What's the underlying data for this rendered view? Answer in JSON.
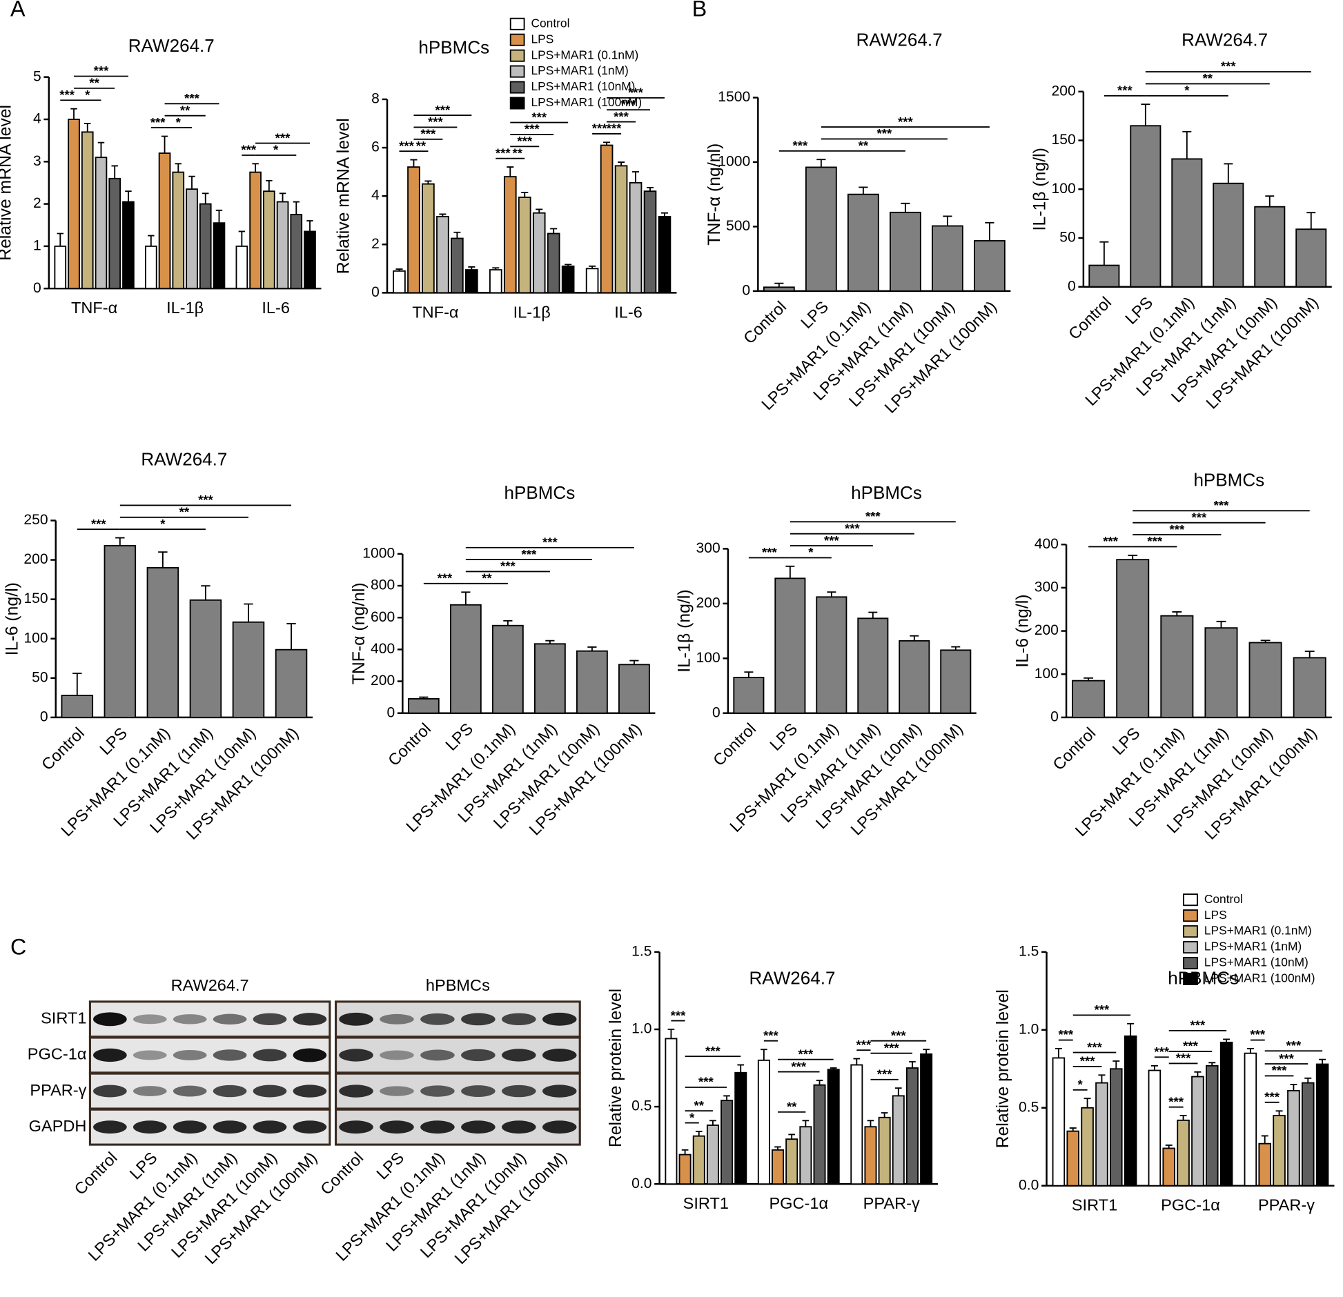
{
  "panels": [
    "A",
    "B",
    "C"
  ],
  "blot": {
    "proteins": [
      "SIRT1",
      "PGC-1α",
      "PPAR-γ",
      "GAPDH"
    ],
    "groups": [
      {
        "name": "RAW264.7",
        "lanes": [
          "Control",
          "LPS",
          "LPS+MAR1 (0.1nM)",
          "LPS+MAR1 (1nM)",
          "LPS+MAR1 (10nM)",
          "LPS+MAR1 (100nM)"
        ]
      },
      {
        "name": "hPBMCs",
        "lanes": [
          "Control",
          "LPS",
          "LPS+MAR1 (0.1nM)",
          "LPS+MAR1 (1nM)",
          "LPS+MAR1 (10nM)",
          "LPS+MAR1 (100nM)"
        ]
      }
    ]
  },
  "chart_data": [
    {
      "type": "bar",
      "title": "RAW264.7",
      "ylabel": "Relative mRNA level",
      "categories": [
        "TNF-α",
        "IL-1β",
        "IL-6"
      ],
      "ylim": [
        0,
        5
      ],
      "yticks": [
        0,
        1,
        2,
        3,
        4,
        5
      ],
      "series": [
        {
          "color": "#ffffff",
          "values": [
            1.0,
            1.0,
            1.0
          ],
          "errors": [
            0.3,
            0.25,
            0.35
          ]
        },
        {
          "color": "#d8914a",
          "values": [
            4.0,
            3.2,
            2.75
          ],
          "errors": [
            0.25,
            0.4,
            0.2
          ]
        },
        {
          "color": "#c4b37c",
          "values": [
            3.7,
            2.75,
            2.3
          ],
          "errors": [
            0.2,
            0.2,
            0.25
          ]
        },
        {
          "color": "#bdbdbd",
          "values": [
            3.1,
            2.35,
            2.05
          ],
          "errors": [
            0.35,
            0.3,
            0.2
          ]
        },
        {
          "color": "#5f5f5f",
          "values": [
            2.6,
            2.0,
            1.75
          ],
          "errors": [
            0.3,
            0.25,
            0.3
          ]
        },
        {
          "color": "#000000",
          "values": [
            2.05,
            1.55,
            1.35
          ],
          "errors": [
            0.25,
            0.3,
            0.25
          ]
        }
      ],
      "annotations": [
        [
          "***",
          "*",
          "**",
          "***"
        ],
        [
          "***",
          "*",
          "**",
          "***"
        ],
        [
          "***",
          "*",
          "***"
        ]
      ]
    },
    {
      "type": "bar",
      "title": "hPBMCs",
      "ylabel": "Relative mRNA level",
      "categories": [
        "TNF-α",
        "IL-1β",
        "IL-6"
      ],
      "ylim": [
        0,
        8
      ],
      "yticks": [
        0,
        2,
        4,
        6,
        8
      ],
      "series": [
        {
          "name": "Control",
          "color": "#ffffff",
          "values": [
            0.9,
            0.95,
            1.0
          ],
          "errors": [
            0.08,
            0.08,
            0.1
          ]
        },
        {
          "name": "LPS",
          "color": "#d8914a",
          "values": [
            5.2,
            4.8,
            6.1
          ],
          "errors": [
            0.3,
            0.4,
            0.12
          ]
        },
        {
          "name": "LPS+MAR1 (0.1nM)",
          "color": "#c4b37c",
          "values": [
            4.5,
            3.95,
            5.25
          ],
          "errors": [
            0.12,
            0.2,
            0.15
          ]
        },
        {
          "name": "LPS+MAR1 (1nM)",
          "color": "#bdbdbd",
          "values": [
            3.15,
            3.3,
            4.55
          ],
          "errors": [
            0.1,
            0.15,
            0.45
          ]
        },
        {
          "name": "LPS+MAR1 (10nM)",
          "color": "#5f5f5f",
          "values": [
            2.25,
            2.45,
            4.2
          ],
          "errors": [
            0.25,
            0.2,
            0.15
          ]
        },
        {
          "name": "LPS+MAR1 (100nM)",
          "color": "#000000",
          "values": [
            0.95,
            1.1,
            3.15
          ],
          "errors": [
            0.12,
            0.07,
            0.15
          ]
        }
      ],
      "annotations": [
        [
          "***",
          "**",
          "***",
          "***",
          "***"
        ],
        [
          "***",
          "**",
          "***",
          "***",
          "***"
        ],
        [
          "***",
          "***",
          "***",
          "***",
          "***"
        ]
      ]
    },
    {
      "type": "bar",
      "title": "RAW264.7",
      "ylabel": "TNF-α (ng/nl)",
      "categories": [
        "Control",
        "LPS",
        "LPS+MAR1 (0.1nM)",
        "LPS+MAR1 (1nM)",
        "LPS+MAR1 (10nM)",
        "LPS+MAR1 (100nM)"
      ],
      "values": [
        30,
        960,
        750,
        610,
        505,
        390
      ],
      "errors": [
        30,
        60,
        55,
        70,
        75,
        140
      ],
      "color": "#808080",
      "ylim": [
        0,
        1500
      ],
      "yticks": [
        0,
        500,
        1000,
        1500
      ],
      "annotations": [
        "***",
        "**",
        "***",
        "***"
      ]
    },
    {
      "type": "bar",
      "title": "RAW264.7",
      "ylabel": "IL-1β (ng/l)",
      "categories": [
        "Control",
        "LPS",
        "LPS+MAR1 (0.1nM)",
        "LPS+MAR1 (1nM)",
        "LPS+MAR1 (10nM)",
        "LPS+MAR1 (100nM)"
      ],
      "values": [
        22,
        165,
        131,
        106,
        82,
        59
      ],
      "errors": [
        24,
        22,
        28,
        20,
        11,
        17
      ],
      "color": "#808080",
      "ylim": [
        0,
        200
      ],
      "yticks": [
        0,
        50,
        100,
        150,
        200
      ],
      "annotations": [
        "***",
        "*",
        "**",
        "***"
      ]
    },
    {
      "type": "bar",
      "title": "RAW264.7",
      "ylabel": "IL-6 (ng/l)",
      "categories": [
        "Control",
        "LPS",
        "LPS+MAR1 (0.1nM)",
        "LPS+MAR1 (1nM)",
        "LPS+MAR1 (10nM)",
        "LPS+MAR1 (100nM)"
      ],
      "values": [
        28,
        218,
        190,
        149,
        121,
        86
      ],
      "errors": [
        28,
        10,
        20,
        18,
        23,
        33
      ],
      "color": "#808080",
      "ylim": [
        0,
        250
      ],
      "yticks": [
        0,
        50,
        100,
        150,
        200,
        250
      ],
      "annotations": [
        "***",
        "*",
        "**",
        "***"
      ]
    },
    {
      "type": "bar",
      "title": "hPBMCs",
      "ylabel": "TNF-α (ng/nl)",
      "categories": [
        "Control",
        "LPS",
        "LPS+MAR1 (0.1nM)",
        "LPS+MAR1 (1nM)",
        "LPS+MAR1 (10nM)",
        "LPS+MAR1 (100nM)"
      ],
      "values": [
        90,
        680,
        550,
        435,
        390,
        305
      ],
      "errors": [
        10,
        80,
        30,
        20,
        25,
        25
      ],
      "color": "#808080",
      "ylim": [
        0,
        1000
      ],
      "yticks": [
        0,
        200,
        400,
        600,
        800,
        1000
      ],
      "annotations": [
        "***",
        "**",
        "***",
        "***",
        "***"
      ]
    },
    {
      "type": "bar",
      "title": "hPBMCs",
      "ylabel": "IL-1β (ng/l)",
      "categories": [
        "Control",
        "LPS",
        "LPS+MAR1 (0.1nM)",
        "LPS+MAR1 (1nM)",
        "LPS+MAR1 (10nM)",
        "LPS+MAR1 (100nM)"
      ],
      "values": [
        65,
        246,
        212,
        173,
        132,
        115
      ],
      "errors": [
        10,
        22,
        9,
        11,
        9,
        6
      ],
      "color": "#808080",
      "ylim": [
        0,
        300
      ],
      "yticks": [
        0,
        100,
        200,
        300
      ],
      "annotations": [
        "***",
        "*",
        "***",
        "***",
        "***"
      ]
    },
    {
      "type": "bar",
      "title": "hPBMCs",
      "ylabel": "IL-6 (ng/l)",
      "categories": [
        "Control",
        "LPS",
        "LPS+MAR1 (0.1nM)",
        "LPS+MAR1 (1nM)",
        "LPS+MAR1 (10nM)",
        "LPS+MAR1 (100nM)"
      ],
      "values": [
        85,
        365,
        235,
        207,
        173,
        138
      ],
      "errors": [
        6,
        10,
        9,
        15,
        5,
        15
      ],
      "color": "#808080",
      "ylim": [
        0,
        400
      ],
      "yticks": [
        0,
        100,
        200,
        300,
        400
      ],
      "annotations": [
        "***",
        "***",
        "***",
        "***",
        "***"
      ]
    },
    {
      "type": "bar",
      "title": "RAW264.7",
      "ylabel": "Relative protein level",
      "categories": [
        "SIRT1",
        "PGC-1α",
        "PPAR-γ"
      ],
      "ylim": [
        0,
        1.5
      ],
      "yticks": [
        {
          "value": 0,
          "label": "0.0"
        },
        0.5,
        {
          "value": 1,
          "label": "1.0"
        },
        1.5
      ],
      "series": [
        {
          "color": "#ffffff",
          "values": [
            0.94,
            0.8,
            0.77
          ],
          "errors": [
            0.06,
            0.07,
            0.04
          ]
        },
        {
          "color": "#d8914a",
          "values": [
            0.19,
            0.22,
            0.37
          ],
          "errors": [
            0.03,
            0.02,
            0.04
          ]
        },
        {
          "color": "#c4b37c",
          "values": [
            0.31,
            0.29,
            0.43
          ],
          "errors": [
            0.03,
            0.03,
            0.03
          ]
        },
        {
          "color": "#bdbdbd",
          "values": [
            0.38,
            0.37,
            0.57
          ],
          "errors": [
            0.03,
            0.04,
            0.05
          ]
        },
        {
          "color": "#5f5f5f",
          "values": [
            0.54,
            0.64,
            0.75
          ],
          "errors": [
            0.03,
            0.03,
            0.04
          ]
        },
        {
          "color": "#000000",
          "values": [
            0.72,
            0.74,
            0.84
          ],
          "errors": [
            0.05,
            0.01,
            0.03
          ]
        }
      ],
      "annotations": [
        [
          "***",
          "*",
          "**",
          "***",
          "***"
        ],
        [
          "***",
          "**",
          "***",
          "***"
        ],
        [
          "***",
          "***",
          "***",
          "***"
        ]
      ]
    },
    {
      "type": "bar",
      "title": "hPBMCs",
      "ylabel": "Relative protein level",
      "categories": [
        "SIRT1",
        "PGC-1α",
        "PPAR-γ"
      ],
      "ylim": [
        0,
        1.5
      ],
      "yticks": [
        {
          "value": 0,
          "label": "0.0"
        },
        0.5,
        {
          "value": 1,
          "label": "1.0"
        },
        1.5
      ],
      "series": [
        {
          "name": "Control",
          "color": "#ffffff",
          "values": [
            0.82,
            0.74,
            0.85
          ],
          "errors": [
            0.06,
            0.03,
            0.03
          ]
        },
        {
          "name": "LPS",
          "color": "#d8914a",
          "values": [
            0.35,
            0.24,
            0.27
          ],
          "errors": [
            0.02,
            0.02,
            0.05
          ]
        },
        {
          "name": "LPS+MAR1 (0.1nM)",
          "color": "#c4b37c",
          "values": [
            0.5,
            0.42,
            0.45
          ],
          "errors": [
            0.06,
            0.03,
            0.03
          ]
        },
        {
          "name": "LPS+MAR1 (1nM)",
          "color": "#bdbdbd",
          "values": [
            0.66,
            0.7,
            0.61
          ],
          "errors": [
            0.05,
            0.03,
            0.04
          ]
        },
        {
          "name": "LPS+MAR1 (10nM)",
          "color": "#5f5f5f",
          "values": [
            0.75,
            0.77,
            0.66
          ],
          "errors": [
            0.05,
            0.02,
            0.03
          ]
        },
        {
          "name": "LPS+MAR1 (100nM)",
          "color": "#000000",
          "values": [
            0.96,
            0.92,
            0.78
          ],
          "errors": [
            0.08,
            0.02,
            0.03
          ]
        }
      ],
      "annotations": [
        [
          "***",
          "*",
          "***",
          "***",
          "***"
        ],
        [
          "***",
          "***",
          "***",
          "***",
          "***"
        ],
        [
          "***",
          "***",
          "***",
          "***",
          "***"
        ]
      ]
    }
  ]
}
